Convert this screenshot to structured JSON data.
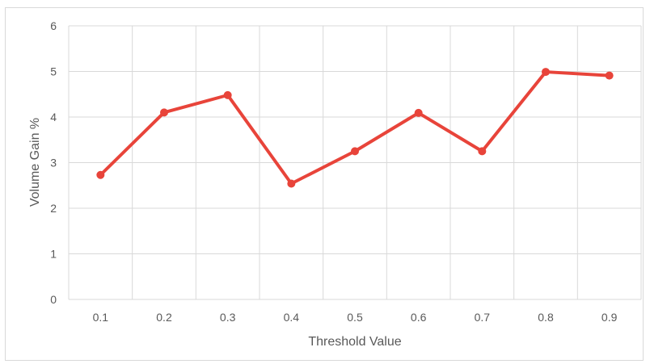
{
  "chart_data": {
    "type": "line",
    "title": "",
    "xlabel": "Threshold Value",
    "ylabel": "Volume Gain %",
    "categories": [
      "0.1",
      "0.2",
      "0.3",
      "0.4",
      "0.5",
      "0.6",
      "0.7",
      "0.8",
      "0.9"
    ],
    "yticks": [
      "0",
      "1",
      "2",
      "3",
      "4",
      "5",
      "6"
    ],
    "ylim": [
      0,
      6
    ],
    "grid": true,
    "legend": "none",
    "series": [
      {
        "values": [
          2.73,
          4.1,
          4.48,
          2.54,
          3.25,
          4.09,
          3.25,
          4.99,
          4.91
        ],
        "color": "#e8443a"
      }
    ]
  }
}
